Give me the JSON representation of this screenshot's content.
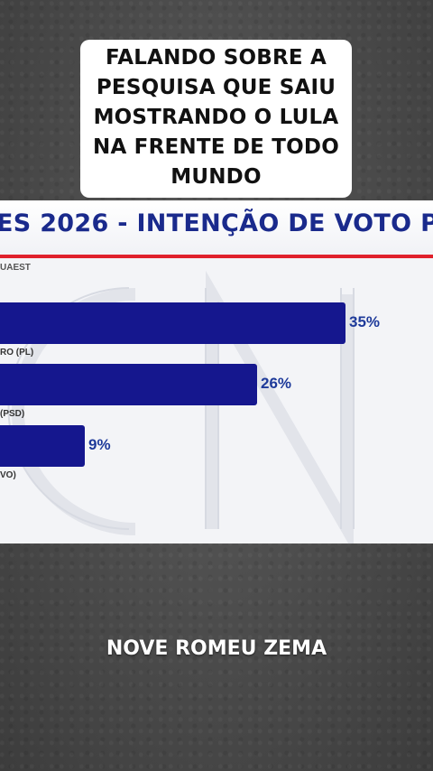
{
  "caption_top": [
    "FALANDO SOBRE A",
    "PESQUISA QUE SAIU",
    "MOSTRANDO O LULA",
    "NA FRENTE DE TODO",
    "MUNDO"
  ],
  "banner": {
    "title": "ES 2026 - INTENÇÃO DE VOTO PAR"
  },
  "source": "UAEST",
  "caption_bottom": "NOVE ROMEU ZEMA",
  "colors": {
    "bar": "#15178e",
    "accent_red": "#e0212b",
    "value_text": "#1e3a9a"
  },
  "chart_data": {
    "type": "bar",
    "orientation": "horizontal",
    "max_value": 35,
    "bars": [
      {
        "value": 35,
        "value_label": "35%",
        "label_below": "RO (PL)"
      },
      {
        "value": 26,
        "value_label": "26%",
        "label_below": "(PSD)"
      },
      {
        "value": 9,
        "value_label": "9%",
        "label_below": "VO)"
      }
    ]
  }
}
